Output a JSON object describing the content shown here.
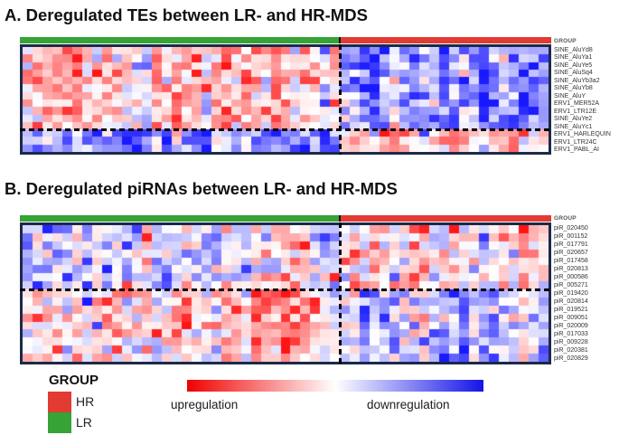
{
  "chart_data": [
    {
      "type": "heatmap",
      "panel": "A",
      "title": "A. Deregulated TEs between LR- and HR-MDS",
      "group_label": "GROUP",
      "rows": [
        "SINE_AluYd8",
        "SINE_AluYa1",
        "SINE_AluYe5",
        "SINE_AluSq4",
        "SINE_AluYb3a2",
        "SINE_AluYb8",
        "SINE_AluY",
        "ERV1_MER52A",
        "ERV1_LTR12E",
        "SINE_AluYe2",
        "SINE_AluYc1",
        "ERV1_HARLEQUIN",
        "ERV1_LTR24C",
        "ERV1_PABL_AI"
      ],
      "split_after_row": 11,
      "columns": {
        "groups": [
          "LR",
          "HR"
        ],
        "lr_samples": 32,
        "hr_samples": 21
      },
      "scale": {
        "min": -1,
        "max": 1,
        "colormap": "red-white-blue"
      },
      "block_means": {
        "upper_lr": 0.28,
        "upper_hr": -0.5,
        "lower_lr": -0.45,
        "lower_hr": 0.2
      },
      "annotation_colors": {
        "LR": "#35a335",
        "HR": "#e23b32"
      }
    },
    {
      "type": "heatmap",
      "panel": "B",
      "title": "B. Deregulated piRNAs between LR- and HR-MDS",
      "group_label": "GROUP",
      "rows": [
        "piR_020450",
        "piR_001152",
        "piR_017791",
        "piR_020657",
        "piR_017458",
        "piR_020813",
        "piR_000586",
        "piR_005271",
        "piR_019420",
        "piR_020814",
        "piR_019521",
        "piR_009051",
        "piR_020009",
        "piR_017033",
        "piR_009228",
        "piR_020381",
        "piR_020829"
      ],
      "split_after_row": 8,
      "columns": {
        "groups": [
          "LR",
          "HR"
        ],
        "lr_samples": 32,
        "hr_samples": 21
      },
      "scale": {
        "min": -1,
        "max": 1,
        "colormap": "red-white-blue"
      },
      "block_means": {
        "upper_lr": -0.14,
        "upper_hr": 0.12,
        "lower_lr": 0.18,
        "lower_hr": -0.3
      },
      "annotation_colors": {
        "LR": "#35a335",
        "HR": "#e23b32"
      }
    }
  ],
  "legend": {
    "title": "GROUP",
    "items": [
      {
        "label": "HR",
        "color": "#e23b32"
      },
      {
        "label": "LR",
        "color": "#35a335"
      }
    ]
  },
  "colorbar": {
    "left_label": "upregulation",
    "right_label": "downregulation",
    "gradient": [
      "#f00000",
      "#ffffff",
      "#1414e8"
    ]
  },
  "colors": {
    "frame_border": "#1b2a48",
    "dashed_line": "#000000",
    "group_bar_divider": "#111111"
  }
}
